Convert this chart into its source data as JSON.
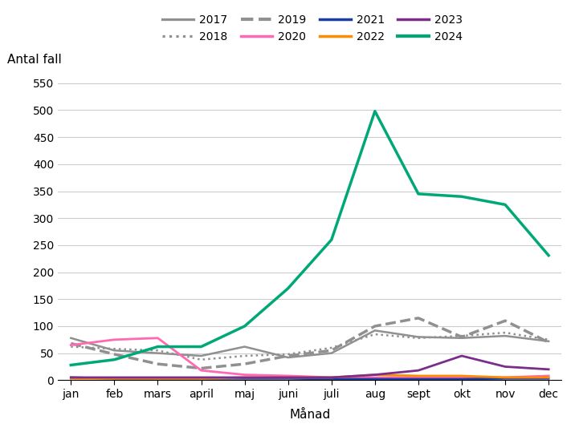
{
  "months": [
    "jan",
    "feb",
    "mars",
    "april",
    "maj",
    "juni",
    "juli",
    "aug",
    "sept",
    "okt",
    "nov",
    "dec"
  ],
  "series": {
    "2017": [
      78,
      55,
      50,
      45,
      62,
      42,
      50,
      92,
      80,
      78,
      82,
      72
    ],
    "2018": [
      62,
      58,
      55,
      38,
      45,
      48,
      60,
      85,
      78,
      82,
      88,
      75
    ],
    "2019": [
      68,
      48,
      30,
      22,
      30,
      45,
      55,
      100,
      115,
      80,
      110,
      70
    ],
    "2020": [
      65,
      75,
      78,
      18,
      10,
      8,
      5,
      5,
      5,
      5,
      5,
      8
    ],
    "2021": [
      5,
      3,
      3,
      3,
      3,
      3,
      2,
      2,
      2,
      2,
      3,
      3
    ],
    "2022": [
      3,
      3,
      3,
      3,
      5,
      5,
      5,
      10,
      8,
      8,
      5,
      5
    ],
    "2023": [
      5,
      5,
      5,
      5,
      5,
      5,
      5,
      10,
      18,
      45,
      25,
      20
    ],
    "2024": [
      28,
      38,
      62,
      62,
      100,
      170,
      260,
      498,
      345,
      340,
      325,
      231
    ]
  },
  "colors": {
    "2017": "#909090",
    "2018": "#909090",
    "2019": "#909090",
    "2020": "#FF69B4",
    "2021": "#1a3fa0",
    "2022": "#FF8C00",
    "2023": "#7B2D8B",
    "2024": "#00a878"
  },
  "linestyles": {
    "2017": "solid",
    "2018": "dotted",
    "2019": "dashed",
    "2020": "solid",
    "2021": "solid",
    "2022": "solid",
    "2023": "solid",
    "2024": "solid"
  },
  "linewidths": {
    "2017": 1.8,
    "2018": 1.8,
    "2019": 2.5,
    "2020": 2.0,
    "2021": 2.0,
    "2022": 2.0,
    "2023": 2.0,
    "2024": 2.5
  },
  "legend_order": [
    "2017",
    "2018",
    "2019",
    "2020",
    "2021",
    "2022",
    "2023",
    "2024"
  ],
  "ylabel": "Antal fall",
  "xlabel": "Månad",
  "ylim": [
    0,
    560
  ],
  "yticks": [
    0,
    50,
    100,
    150,
    200,
    250,
    300,
    350,
    400,
    450,
    500,
    550
  ],
  "background_color": "#ffffff",
  "grid_color": "#cccccc"
}
